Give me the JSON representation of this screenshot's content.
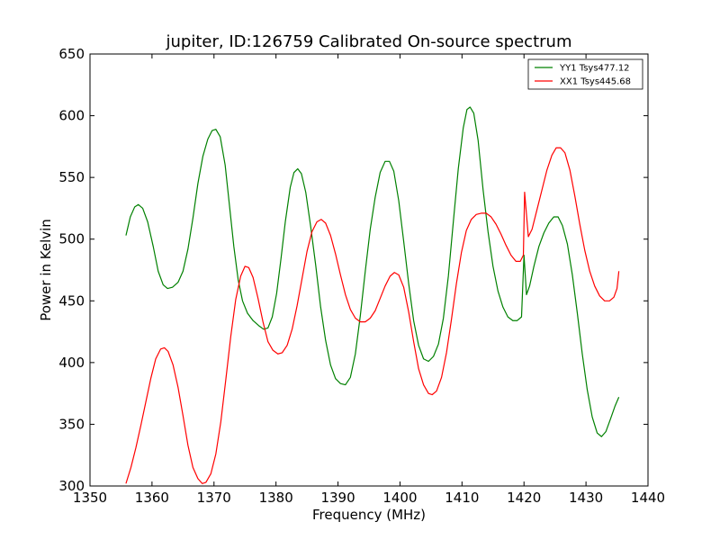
{
  "chart_data": {
    "type": "line",
    "title": "jupiter, ID:126759 Calibrated On-source spectrum",
    "xlabel": "Frequency (MHz)",
    "ylabel": "Power in Kelvin",
    "xlim": [
      1350,
      1440
    ],
    "ylim": [
      300,
      650
    ],
    "xticks": [
      1350,
      1360,
      1370,
      1380,
      1390,
      1400,
      1410,
      1420,
      1430,
      1440
    ],
    "yticks": [
      300,
      350,
      400,
      450,
      500,
      550,
      600,
      650
    ],
    "grid": false,
    "legend_position": "top-right",
    "series": [
      {
        "name": "YY1 Tsys477.12",
        "color": "#008000",
        "points": [
          [
            1355.8,
            503
          ],
          [
            1356.5,
            518
          ],
          [
            1357.2,
            526
          ],
          [
            1357.8,
            528
          ],
          [
            1358.5,
            525
          ],
          [
            1359.3,
            514
          ],
          [
            1360.2,
            494
          ],
          [
            1361.0,
            474
          ],
          [
            1361.8,
            463
          ],
          [
            1362.5,
            460
          ],
          [
            1363.3,
            461
          ],
          [
            1364.2,
            465
          ],
          [
            1365.0,
            474
          ],
          [
            1365.8,
            492
          ],
          [
            1366.6,
            517
          ],
          [
            1367.4,
            545
          ],
          [
            1368.2,
            567
          ],
          [
            1369.0,
            581
          ],
          [
            1369.7,
            588
          ],
          [
            1370.3,
            589
          ],
          [
            1371.0,
            583
          ],
          [
            1371.8,
            560
          ],
          [
            1372.5,
            527
          ],
          [
            1373.2,
            494
          ],
          [
            1373.9,
            467
          ],
          [
            1374.6,
            450
          ],
          [
            1375.4,
            440
          ],
          [
            1376.3,
            434
          ],
          [
            1377.2,
            430
          ],
          [
            1378.0,
            427
          ],
          [
            1378.7,
            428
          ],
          [
            1379.4,
            437
          ],
          [
            1380.1,
            456
          ],
          [
            1380.8,
            484
          ],
          [
            1381.5,
            514
          ],
          [
            1382.3,
            542
          ],
          [
            1382.9,
            554
          ],
          [
            1383.5,
            557
          ],
          [
            1384.1,
            553
          ],
          [
            1384.8,
            538
          ],
          [
            1385.6,
            510
          ],
          [
            1386.4,
            479
          ],
          [
            1387.2,
            445
          ],
          [
            1388.0,
            418
          ],
          [
            1388.8,
            398
          ],
          [
            1389.6,
            387
          ],
          [
            1390.4,
            383
          ],
          [
            1391.2,
            382
          ],
          [
            1392.0,
            388
          ],
          [
            1392.8,
            407
          ],
          [
            1393.6,
            438
          ],
          [
            1394.4,
            474
          ],
          [
            1395.2,
            508
          ],
          [
            1396.0,
            534
          ],
          [
            1396.8,
            554
          ],
          [
            1397.6,
            563
          ],
          [
            1398.3,
            563
          ],
          [
            1399.0,
            555
          ],
          [
            1399.8,
            531
          ],
          [
            1400.6,
            498
          ],
          [
            1401.4,
            464
          ],
          [
            1402.2,
            434
          ],
          [
            1403.0,
            414
          ],
          [
            1403.8,
            403
          ],
          [
            1404.6,
            401
          ],
          [
            1405.4,
            405
          ],
          [
            1406.2,
            415
          ],
          [
            1407.0,
            436
          ],
          [
            1407.8,
            470
          ],
          [
            1408.6,
            514
          ],
          [
            1409.4,
            557
          ],
          [
            1410.2,
            590
          ],
          [
            1410.8,
            605
          ],
          [
            1411.3,
            607
          ],
          [
            1411.9,
            602
          ],
          [
            1412.6,
            580
          ],
          [
            1413.4,
            540
          ],
          [
            1414.2,
            506
          ],
          [
            1415.0,
            478
          ],
          [
            1415.8,
            458
          ],
          [
            1416.6,
            445
          ],
          [
            1417.4,
            437
          ],
          [
            1418.2,
            434
          ],
          [
            1418.9,
            434
          ],
          [
            1419.6,
            437
          ],
          [
            1420.0,
            487
          ],
          [
            1420.4,
            455
          ],
          [
            1420.9,
            462
          ],
          [
            1421.6,
            478
          ],
          [
            1422.4,
            494
          ],
          [
            1423.2,
            505
          ],
          [
            1424.0,
            513
          ],
          [
            1424.8,
            518
          ],
          [
            1425.5,
            518
          ],
          [
            1426.2,
            511
          ],
          [
            1427.0,
            496
          ],
          [
            1427.8,
            471
          ],
          [
            1428.6,
            440
          ],
          [
            1429.4,
            407
          ],
          [
            1430.2,
            378
          ],
          [
            1431.0,
            356
          ],
          [
            1431.8,
            343
          ],
          [
            1432.5,
            340
          ],
          [
            1433.2,
            344
          ],
          [
            1434.0,
            355
          ],
          [
            1434.7,
            365
          ],
          [
            1435.3,
            372
          ]
        ]
      },
      {
        "name": "XX1 Tsys445.68",
        "color": "#ff0000",
        "points": [
          [
            1355.8,
            302
          ],
          [
            1356.6,
            315
          ],
          [
            1357.4,
            331
          ],
          [
            1358.2,
            349
          ],
          [
            1359.0,
            368
          ],
          [
            1359.8,
            387
          ],
          [
            1360.6,
            403
          ],
          [
            1361.4,
            411
          ],
          [
            1362.0,
            412
          ],
          [
            1362.6,
            409
          ],
          [
            1363.4,
            398
          ],
          [
            1364.2,
            380
          ],
          [
            1365.0,
            357
          ],
          [
            1365.8,
            333
          ],
          [
            1366.6,
            315
          ],
          [
            1367.4,
            306
          ],
          [
            1368.1,
            302
          ],
          [
            1368.7,
            303
          ],
          [
            1369.5,
            310
          ],
          [
            1370.3,
            326
          ],
          [
            1371.1,
            352
          ],
          [
            1371.9,
            386
          ],
          [
            1372.7,
            421
          ],
          [
            1373.5,
            451
          ],
          [
            1374.3,
            470
          ],
          [
            1375.0,
            478
          ],
          [
            1375.6,
            477
          ],
          [
            1376.3,
            469
          ],
          [
            1377.1,
            452
          ],
          [
            1377.9,
            433
          ],
          [
            1378.7,
            417
          ],
          [
            1379.5,
            410
          ],
          [
            1380.3,
            407
          ],
          [
            1381.0,
            408
          ],
          [
            1381.8,
            414
          ],
          [
            1382.6,
            427
          ],
          [
            1383.4,
            446
          ],
          [
            1384.2,
            468
          ],
          [
            1385.0,
            490
          ],
          [
            1385.8,
            506
          ],
          [
            1386.6,
            514
          ],
          [
            1387.3,
            516
          ],
          [
            1388.0,
            513
          ],
          [
            1388.8,
            503
          ],
          [
            1389.6,
            488
          ],
          [
            1390.4,
            471
          ],
          [
            1391.2,
            455
          ],
          [
            1392.0,
            443
          ],
          [
            1392.8,
            436
          ],
          [
            1393.6,
            433
          ],
          [
            1394.4,
            433
          ],
          [
            1395.2,
            436
          ],
          [
            1396.0,
            442
          ],
          [
            1396.8,
            452
          ],
          [
            1397.6,
            462
          ],
          [
            1398.4,
            470
          ],
          [
            1399.1,
            473
          ],
          [
            1399.8,
            471
          ],
          [
            1400.6,
            461
          ],
          [
            1401.4,
            441
          ],
          [
            1402.2,
            417
          ],
          [
            1403.0,
            395
          ],
          [
            1403.8,
            382
          ],
          [
            1404.6,
            375
          ],
          [
            1405.2,
            374
          ],
          [
            1405.9,
            377
          ],
          [
            1406.7,
            388
          ],
          [
            1407.5,
            408
          ],
          [
            1408.3,
            435
          ],
          [
            1409.1,
            464
          ],
          [
            1409.9,
            489
          ],
          [
            1410.7,
            507
          ],
          [
            1411.5,
            516
          ],
          [
            1412.3,
            520
          ],
          [
            1413.1,
            521
          ],
          [
            1413.9,
            521
          ],
          [
            1414.7,
            518
          ],
          [
            1415.5,
            512
          ],
          [
            1416.3,
            504
          ],
          [
            1417.1,
            495
          ],
          [
            1417.9,
            487
          ],
          [
            1418.7,
            482
          ],
          [
            1419.4,
            482
          ],
          [
            1419.9,
            487
          ],
          [
            1420.1,
            538
          ],
          [
            1420.4,
            520
          ],
          [
            1420.7,
            502
          ],
          [
            1421.3,
            508
          ],
          [
            1422.1,
            524
          ],
          [
            1422.9,
            540
          ],
          [
            1423.7,
            556
          ],
          [
            1424.5,
            568
          ],
          [
            1425.2,
            574
          ],
          [
            1425.9,
            574
          ],
          [
            1426.6,
            570
          ],
          [
            1427.4,
            556
          ],
          [
            1428.2,
            535
          ],
          [
            1429.0,
            512
          ],
          [
            1429.8,
            491
          ],
          [
            1430.6,
            474
          ],
          [
            1431.4,
            462
          ],
          [
            1432.2,
            454
          ],
          [
            1433.0,
            450
          ],
          [
            1433.8,
            450
          ],
          [
            1434.5,
            453
          ],
          [
            1435.0,
            460
          ],
          [
            1435.3,
            474
          ]
        ]
      }
    ]
  }
}
